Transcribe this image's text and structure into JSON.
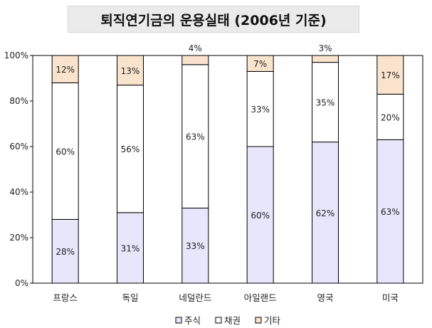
{
  "chart_data": {
    "type": "bar",
    "stacked": true,
    "title": "퇴직연기금의 운용실태 (2006년 기준)",
    "categories": [
      "프랑스",
      "독일",
      "네덜란드",
      "아일랜드",
      "영국",
      "미국"
    ],
    "series": [
      {
        "name": "주식",
        "values": [
          28,
          31,
          33,
          60,
          62,
          63
        ],
        "labels": [
          "28%",
          "31%",
          "33%",
          "60%",
          "62%",
          "63%"
        ],
        "color": "#e8e6fb"
      },
      {
        "name": "채권",
        "values": [
          60,
          56,
          63,
          33,
          35,
          20
        ],
        "labels": [
          "60%",
          "56%",
          "63%",
          "33%",
          "35%",
          "20%"
        ],
        "color": "#ffffff"
      },
      {
        "name": "기타",
        "values": [
          12,
          13,
          4,
          7,
          3,
          17
        ],
        "labels": [
          "12%",
          "13%",
          "4%",
          "7%",
          "3%",
          "17%"
        ],
        "color": "#fdebd8"
      }
    ],
    "yticks": [
      "0%",
      "20%",
      "40%",
      "60%",
      "80%",
      "100%"
    ],
    "ylim": [
      0,
      100
    ],
    "grid": false,
    "legend": "bottom"
  }
}
